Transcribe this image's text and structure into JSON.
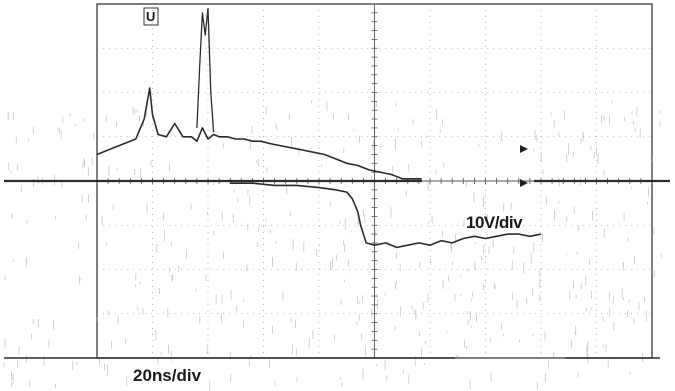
{
  "chart_data": {
    "type": "line",
    "title": "",
    "xlabel": "",
    "ylabel": "",
    "annotations": {
      "time_scale": "20ns/div",
      "voltage_scale": "10V/div"
    },
    "grid": true,
    "channel_marker": "U",
    "series": [
      {
        "trace": "upper",
        "x_divisions": [
          0.0,
          0.3,
          0.5,
          0.7,
          0.85,
          0.95,
          1.0,
          1.1,
          1.25,
          1.4,
          1.55,
          1.7,
          1.8,
          1.9,
          2.0,
          2.1,
          2.2,
          2.35,
          2.5,
          2.65,
          2.8,
          2.95,
          3.1,
          3.3,
          3.5,
          3.7,
          3.9,
          4.1,
          4.3,
          4.5,
          4.7,
          4.9,
          5.1,
          5.3,
          5.5,
          5.7,
          5.85
        ],
        "y_divisions": [
          4.6,
          4.75,
          4.85,
          4.95,
          5.4,
          6.1,
          5.5,
          5.05,
          5.0,
          5.3,
          5.0,
          5.0,
          4.9,
          5.2,
          4.95,
          5.05,
          5.0,
          5.0,
          4.95,
          4.95,
          4.9,
          4.9,
          4.85,
          4.8,
          4.75,
          4.7,
          4.65,
          4.6,
          4.5,
          4.4,
          4.35,
          4.25,
          4.2,
          4.15,
          4.05,
          4.05,
          4.05
        ]
      },
      {
        "trace": "lower",
        "x_divisions": [
          2.4,
          2.8,
          3.2,
          3.6,
          4.0,
          4.3,
          4.5,
          4.6,
          4.7,
          4.75,
          4.8,
          4.85,
          5.0,
          5.2,
          5.4,
          5.6,
          5.8,
          6.0,
          6.2,
          6.4,
          6.6,
          6.8,
          7.0,
          7.2,
          7.4,
          7.6,
          7.8,
          8.0
        ],
        "y_divisions": [
          3.95,
          3.95,
          3.9,
          3.9,
          3.85,
          3.8,
          3.75,
          3.6,
          3.3,
          3.0,
          2.8,
          2.6,
          2.55,
          2.6,
          2.5,
          2.55,
          2.6,
          2.55,
          2.65,
          2.6,
          2.7,
          2.75,
          2.7,
          2.75,
          2.8,
          2.8,
          2.75,
          2.8
        ]
      },
      {
        "trace": "spike",
        "x_divisions": [
          1.8,
          1.85,
          1.9,
          1.95,
          2.0,
          2.05,
          2.1
        ],
        "y_divisions": [
          5.2,
          6.6,
          7.8,
          7.3,
          7.9,
          6.0,
          5.1
        ]
      }
    ]
  }
}
